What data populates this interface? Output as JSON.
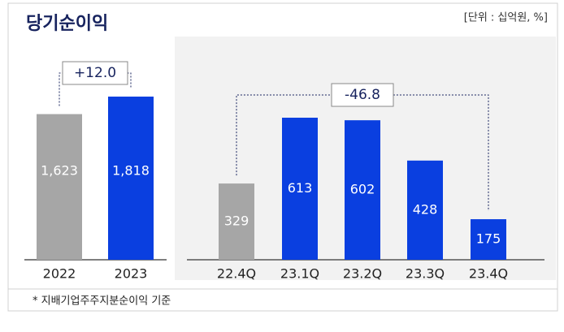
{
  "title": "당기순이익",
  "unit": "[단위 : 십억원, %]",
  "footnote": "* 지배기업주주지분순이익 기준",
  "chart_data": [
    {
      "type": "bar",
      "categories": [
        "2022",
        "2023"
      ],
      "values": [
        1623,
        1818
      ],
      "value_labels": [
        "1,623",
        "1,818"
      ],
      "colors": [
        "#a6a6a6",
        "#0a3fe0"
      ],
      "annotation": "+12.0"
    },
    {
      "type": "bar",
      "categories": [
        "22.4Q",
        "23.1Q",
        "23.2Q",
        "23.3Q",
        "23.4Q"
      ],
      "values": [
        329,
        613,
        602,
        428,
        175
      ],
      "colors": [
        "#a6a6a6",
        "#0a3fe0",
        "#0a3fe0",
        "#0a3fe0",
        "#0a3fe0"
      ],
      "annotation": "-46.8"
    }
  ]
}
